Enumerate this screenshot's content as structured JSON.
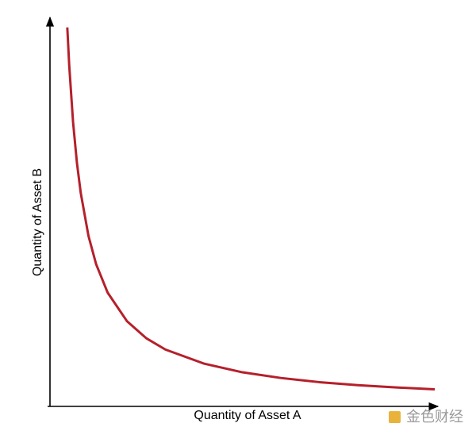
{
  "chart_data": {
    "type": "line",
    "x_label": "Quantity of Asset A",
    "y_label": "Quantity of Asset B",
    "x": [
      4.5,
      5,
      6,
      7,
      8,
      10,
      12,
      15,
      20,
      25,
      30,
      40,
      50,
      60,
      70,
      80,
      90,
      100
    ],
    "series": [
      {
        "name": "curve",
        "color": "#b5202b",
        "values": [
          100,
          90,
          75,
          64.3,
          56.3,
          45,
          37.5,
          30,
          22.5,
          18,
          15,
          11.3,
          9,
          7.5,
          6.4,
          5.6,
          5,
          4.5
        ]
      }
    ],
    "xlim": [
      0,
      100
    ],
    "ylim": [
      0,
      102
    ]
  },
  "watermark": "金色财经"
}
